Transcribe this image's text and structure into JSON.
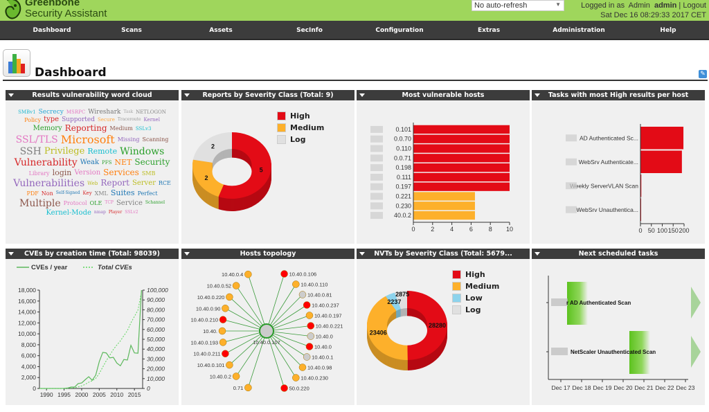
{
  "header": {
    "brand_line1": "Greenbone",
    "brand_line2": "Security Assistant",
    "refresh_select": "No auto-refresh",
    "login_prefix": "Logged in as",
    "login_role": "Admin",
    "login_user": "admin",
    "logout": "Logout",
    "datetime": "Sat Dec 16 08:29:33 2017 CET"
  },
  "nav": [
    "Dashboard",
    "Scans",
    "Assets",
    "SecInfo",
    "Configuration",
    "Extras",
    "Administration",
    "Help"
  ],
  "page": {
    "title": "Dashboard"
  },
  "colors": {
    "high": "#e30b16",
    "medium": "#fdb02b",
    "low": "#8dd3ec",
    "log": "#e0e0e0",
    "accent": "#9fd65c",
    "nav": "#3c3c3c"
  },
  "panels": {
    "p1": "Results vulnerability word cloud",
    "p2": "Reports by Severity Class (Total: 9)",
    "p3": "Most vulnerable hosts",
    "p4": "Tasks with most High results per host",
    "p5": "CVEs by creation time (Total: 98039)",
    "p6": "Hosts topology",
    "p7": "NVTs by Severity Class (Total: 5679...",
    "p8": "Next scheduled tasks"
  },
  "chart_data": [
    {
      "type": "wordcloud",
      "words": [
        [
          "SMBv1",
          "#22b8cf",
          7
        ],
        [
          "Secrecy",
          "#2aa6d6",
          9
        ],
        [
          "MSRPC",
          "#e377c2",
          7
        ],
        [
          "Wireshark",
          "#777",
          9
        ],
        [
          "Task",
          "#aaa",
          6
        ],
        [
          "NETLOGON",
          "#888",
          7
        ],
        [
          "Policy",
          "#ff7f0e",
          8
        ],
        [
          "type",
          "#d62728",
          10
        ],
        [
          "Supported",
          "#9467bd",
          9
        ],
        [
          "Secure",
          "#ffaa44",
          7
        ],
        [
          "Traceroute",
          "#999",
          6
        ],
        [
          "Kernel",
          "#9467bd",
          7
        ],
        [
          "Memory",
          "#2ca02c",
          10
        ],
        [
          "Reporting",
          "#d62728",
          12
        ],
        [
          "Medium",
          "#8c564b",
          8
        ],
        [
          "SSLv3",
          "#17becf",
          7
        ],
        [
          "SSL/TLS",
          "#e377c2",
          14
        ],
        [
          "Microsoft",
          "#ff7f0e",
          16
        ],
        [
          "Missing",
          "#9467bd",
          8
        ],
        [
          "Scanning",
          "#8c564b",
          8
        ],
        [
          "SSH",
          "#7f7f7f",
          14
        ],
        [
          "Privilege",
          "#bcbd22",
          13
        ],
        [
          "Remote",
          "#17becf",
          11
        ],
        [
          "Windows",
          "#2ca02c",
          14
        ],
        [
          "Vulnerability",
          "#d62728",
          14
        ],
        [
          "Weak",
          "#1f77b4",
          10
        ],
        [
          "PFS",
          "#2ca02c",
          7
        ],
        [
          "NET",
          "#ff7f0e",
          11
        ],
        [
          "Security",
          "#2ca02c",
          12
        ],
        [
          "Library",
          "#e377c2",
          8
        ],
        [
          "login",
          "#8c564b",
          11
        ],
        [
          "Version",
          "#e377c2",
          10
        ],
        [
          "Services",
          "#ff7f0e",
          12
        ],
        [
          "SMB",
          "#bcbd22",
          8
        ],
        [
          "Vulnerabilities",
          "#9467bd",
          14
        ],
        [
          "Web",
          "#bcbd22",
          7
        ],
        [
          "Report",
          "#9467bd",
          12
        ],
        [
          "Server",
          "#bcbd22",
          10
        ],
        [
          "RCE",
          "#1f77b4",
          8
        ],
        [
          "PDF",
          "#ff7f0e",
          8
        ],
        [
          "Non",
          "#d62728",
          8
        ],
        [
          "Self-Signed",
          "#1f77b4",
          6
        ],
        [
          "Key",
          "#d62728",
          7
        ],
        [
          "XML",
          "#7f7f7f",
          8
        ],
        [
          "Suites",
          "#1f77b4",
          11
        ],
        [
          "Perfect",
          "#1f77b4",
          8
        ],
        [
          "Multiple",
          "#8c564b",
          14
        ],
        [
          "Protocol",
          "#e377c2",
          8
        ],
        [
          "OLE",
          "#2ca02c",
          8
        ],
        [
          "TCP",
          "#e377c2",
          6
        ],
        [
          "Service",
          "#7f7f7f",
          10
        ],
        [
          "Schannel",
          "#2ca02c",
          6
        ],
        [
          "Kernel-Mode",
          "#17becf",
          10
        ],
        [
          "nmap",
          "#9467bd",
          6
        ],
        [
          "Player",
          "#d62728",
          6
        ],
        [
          "SSLv2",
          "#e377c2",
          6
        ]
      ]
    },
    {
      "type": "pie",
      "variant": "donut-3d",
      "categories": [
        "High",
        "Medium",
        "Log"
      ],
      "values": [
        5,
        2,
        2
      ],
      "legend": "top-right"
    },
    {
      "type": "bar",
      "orientation": "horizontal",
      "categories": [
        "0.101",
        "0.0.70",
        "0.110",
        "0.0.71",
        "0.198",
        "0.111",
        "0.197",
        "0.221",
        "0.230",
        "40.0.2"
      ],
      "values": [
        10,
        10,
        10,
        10,
        10,
        10,
        10,
        6.4,
        6.4,
        6.4
      ],
      "severity": [
        "high",
        "high",
        "high",
        "high",
        "high",
        "high",
        "high",
        "medium",
        "medium",
        "medium"
      ],
      "xlim": [
        0,
        10
      ],
      "xticks": [
        0,
        2,
        4,
        6,
        8,
        10
      ]
    },
    {
      "type": "bar",
      "orientation": "horizontal",
      "categories": [
        "AD Authenticated Sc...",
        "WebSrv Authenticate...",
        "Weekly ServerVLAN Scan",
        "WebSrv Unauthentica..."
      ],
      "values": [
        197,
        190,
        4,
        1
      ],
      "xlim": [
        0,
        200
      ],
      "xticks": [
        0,
        50,
        100,
        150,
        200
      ]
    },
    {
      "type": "line",
      "x": [
        1988,
        1989,
        1990,
        1991,
        1992,
        1993,
        1994,
        1995,
        1996,
        1997,
        1998,
        1999,
        2000,
        2001,
        2002,
        2003,
        2004,
        2005,
        2006,
        2007,
        2008,
        2009,
        2010,
        2011,
        2012,
        2013,
        2014,
        2015,
        2016,
        2017
      ],
      "series": [
        {
          "name": "CVEs / year",
          "axis": "left",
          "style": "solid",
          "values": [
            0,
            0,
            0,
            0,
            0,
            0,
            0,
            25,
            75,
            250,
            250,
            900,
            1000,
            1600,
            2150,
            1500,
            2450,
            4900,
            6600,
            6500,
            5600,
            5700,
            4650,
            4150,
            5300,
            5200,
            7900,
            6500,
            6450,
            18000
          ]
        },
        {
          "name": "Total CVEs",
          "axis": "right",
          "style": "dashed",
          "values": [
            0,
            0,
            0,
            0,
            0,
            0,
            0,
            100,
            175,
            425,
            675,
            1575,
            2575,
            4175,
            6325,
            7825,
            10275,
            15175,
            21775,
            28275,
            33875,
            39575,
            44225,
            48375,
            53675,
            58875,
            66775,
            73275,
            79725,
            98039
          ]
        }
      ],
      "ylim_left": [
        0,
        18000
      ],
      "yticks_left": [
        "0",
        "2,000",
        "4,000",
        "6,000",
        "8,000",
        "10,000",
        "12,000",
        "14,000",
        "16,000",
        "18,000"
      ],
      "ylim_right": [
        0,
        100000
      ],
      "yticks_right": [
        "0",
        "10,000",
        "20,000",
        "30,000",
        "40,000",
        "50,000",
        "60,000",
        "70,000",
        "80,000",
        "90,000",
        "100,000"
      ],
      "xticks": [
        1990,
        1995,
        2000,
        2005,
        2010,
        2015
      ],
      "legend": "top"
    },
    {
      "type": "network",
      "center": "10.40.0.107",
      "nodes": [
        [
          "10.40.0.106",
          "high"
        ],
        [
          "10.40.0.110",
          "medium"
        ],
        [
          "10.40.0.81",
          "log"
        ],
        [
          "10.40.0.237",
          "high"
        ],
        [
          "10.40.0.197",
          "medium"
        ],
        [
          "10.40.0.221",
          "high"
        ],
        [
          "10.40.0",
          "log"
        ],
        [
          "10.40.0",
          "high"
        ],
        [
          "10.40.0.1",
          "log"
        ],
        [
          "10.40.0.98",
          "medium"
        ],
        [
          "10.40.0.230",
          "medium"
        ],
        [
          "50.0.220",
          "high"
        ],
        [
          "0.71",
          "medium"
        ],
        [
          "10.40.0.2",
          "medium"
        ],
        [
          "10.40.0.101",
          "medium"
        ],
        [
          "10.40.0.211",
          "high"
        ],
        [
          "10.40.0.193",
          "medium"
        ],
        [
          "10.40.",
          "medium"
        ],
        [
          "10.40.0.210",
          "high"
        ],
        [
          "10.40.0.90",
          "medium"
        ],
        [
          "10.40.0.220",
          "medium"
        ],
        [
          "10.40.0.52",
          "medium"
        ],
        [
          "10.40.0.4",
          "medium"
        ]
      ]
    },
    {
      "type": "pie",
      "variant": "donut-3d",
      "categories": [
        "High",
        "Medium",
        "Low",
        "Log"
      ],
      "values": [
        28280,
        23406,
        2237,
        2875
      ],
      "legend": "top-right"
    },
    {
      "type": "gantt",
      "tasks": [
        {
          "name": "r AD Authenticated Scan",
          "start": "Dec 17.3",
          "start_day": 17.3,
          "end_day": 18.3
        },
        {
          "name": "NetScaler Unauthenticated Scan",
          "start_day": 20.3,
          "end_day": 21.3
        }
      ],
      "xticks": [
        "Dec 17",
        "Dec 18",
        "Dec 19",
        "Dec 20",
        "Dec 21",
        "Dec 22",
        "Dec 23"
      ]
    }
  ]
}
